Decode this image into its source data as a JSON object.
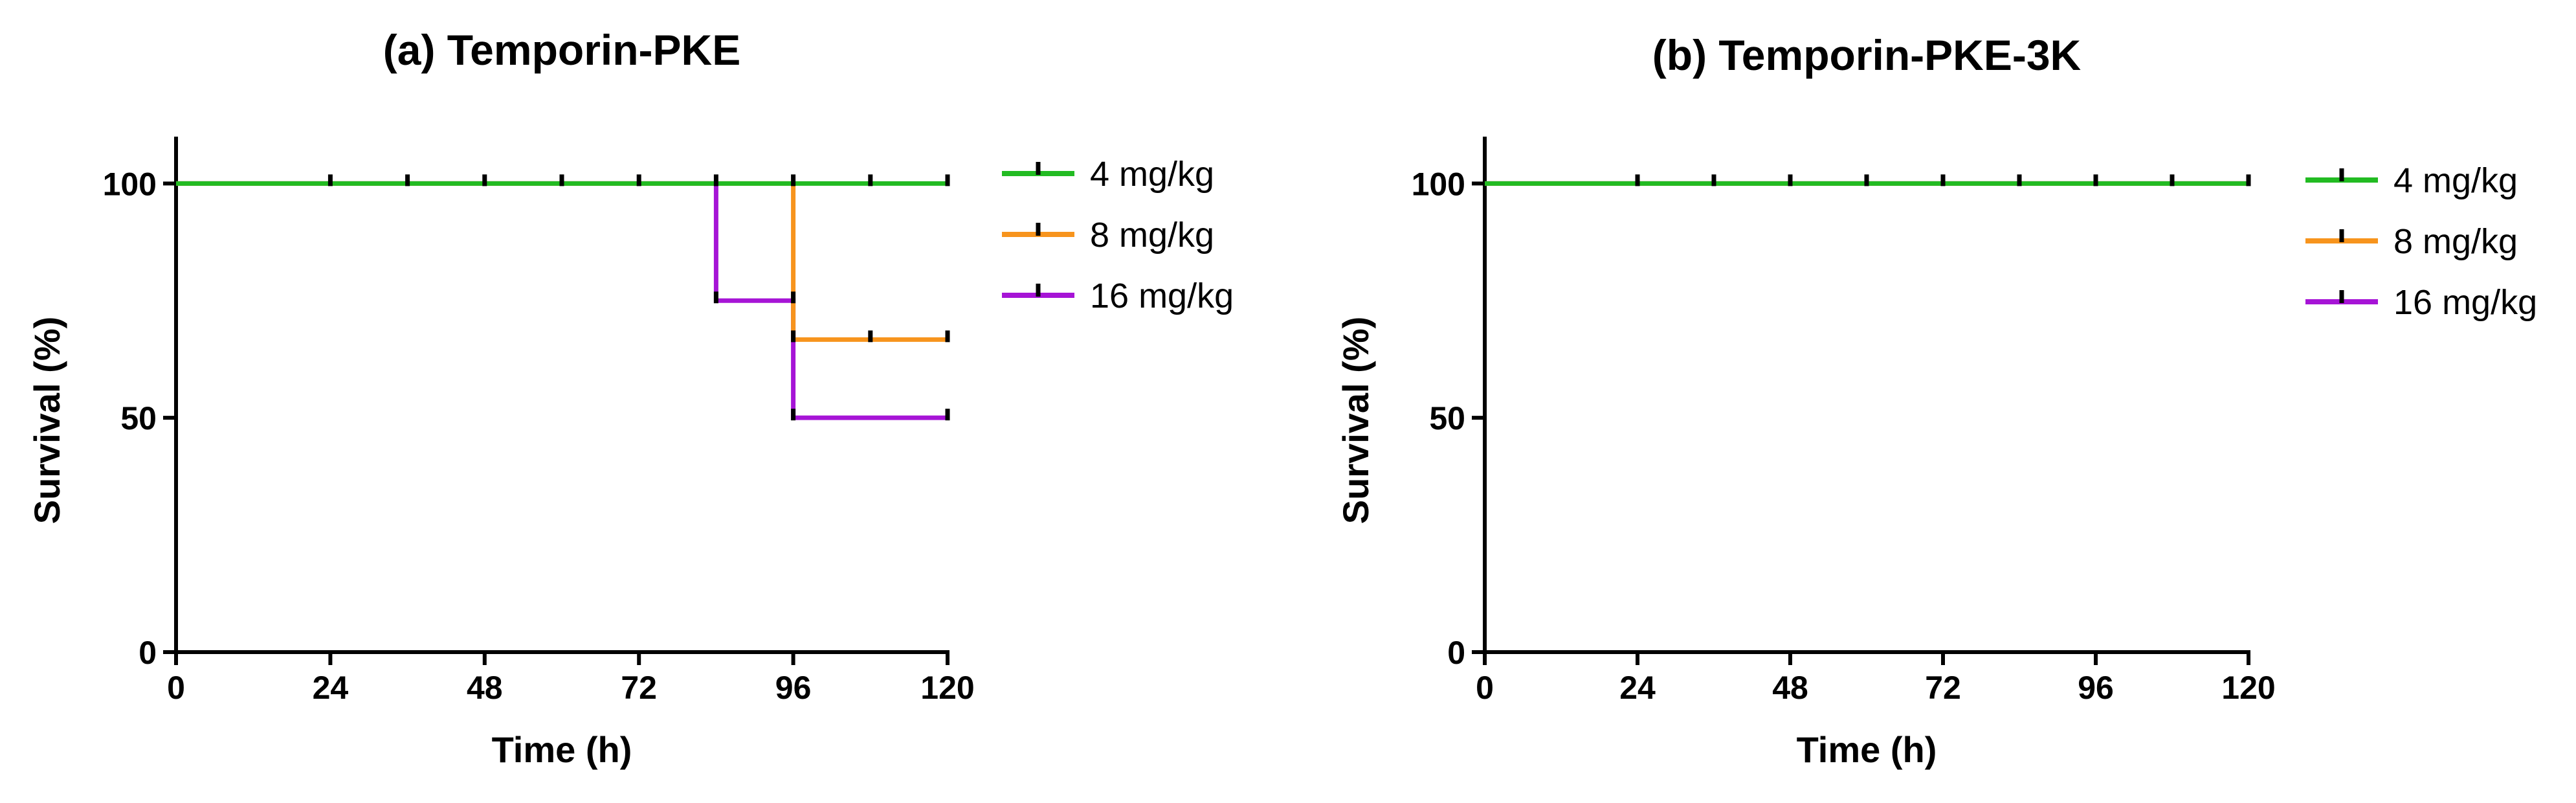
{
  "chart_data": [
    {
      "type": "line",
      "subtype": "kaplan-meier step",
      "title": "(a) Temporin-PKE",
      "xlabel": "Time (h)",
      "ylabel": "Survival (%)",
      "xlim": [
        0,
        120
      ],
      "ylim": [
        0,
        110
      ],
      "xticks": [
        0,
        24,
        48,
        72,
        96,
        120
      ],
      "yticks": [
        0,
        50,
        100
      ],
      "xtick_labels": [
        "0",
        "24",
        "48",
        "72",
        "96",
        "120"
      ],
      "ytick_labels": [
        "0",
        "50",
        "100"
      ],
      "legend_position": "right",
      "series": [
        {
          "name": "4 mg/kg",
          "color": "#22bb22",
          "steps": [
            [
              0,
              100
            ],
            [
              120,
              100
            ]
          ],
          "censors": [
            [
              24,
              100
            ],
            [
              36,
              100
            ],
            [
              48,
              100
            ],
            [
              60,
              100
            ],
            [
              72,
              100
            ],
            [
              84,
              100
            ],
            [
              96,
              100
            ],
            [
              108,
              100
            ],
            [
              120,
              100
            ]
          ]
        },
        {
          "name": "8 mg/kg",
          "color": "#f7941d",
          "steps": [
            [
              0,
              100
            ],
            [
              96,
              100
            ],
            [
              96,
              66.7
            ],
            [
              120,
              66.7
            ]
          ],
          "censors": [
            [
              96,
              66.7
            ],
            [
              108,
              66.7
            ],
            [
              120,
              66.7
            ]
          ]
        },
        {
          "name": "16 mg/kg",
          "color": "#a614d6",
          "steps": [
            [
              0,
              100
            ],
            [
              84,
              100
            ],
            [
              84,
              75
            ],
            [
              96,
              75
            ],
            [
              96,
              50
            ],
            [
              120,
              50
            ]
          ],
          "censors": [
            [
              84,
              75
            ],
            [
              96,
              75
            ],
            [
              96,
              50
            ],
            [
              120,
              50
            ]
          ]
        }
      ]
    },
    {
      "type": "line",
      "subtype": "kaplan-meier step",
      "title": "(b) Temporin-PKE-3K",
      "xlabel": "Time (h)",
      "ylabel": "Survival (%)",
      "xlim": [
        0,
        120
      ],
      "ylim": [
        0,
        110
      ],
      "xticks": [
        0,
        24,
        48,
        72,
        96,
        120
      ],
      "yticks": [
        0,
        50,
        100
      ],
      "xtick_labels": [
        "0",
        "24",
        "48",
        "72",
        "96",
        "120"
      ],
      "ytick_labels": [
        "0",
        "50",
        "100"
      ],
      "legend_position": "right",
      "series": [
        {
          "name": "4 mg/kg",
          "color": "#22bb22",
          "steps": [
            [
              0,
              100
            ],
            [
              120,
              100
            ]
          ],
          "censors": [
            [
              24,
              100
            ],
            [
              36,
              100
            ],
            [
              48,
              100
            ],
            [
              60,
              100
            ],
            [
              72,
              100
            ],
            [
              84,
              100
            ],
            [
              96,
              100
            ],
            [
              108,
              100
            ],
            [
              120,
              100
            ]
          ]
        },
        {
          "name": "8 mg/kg",
          "color": "#f7941d",
          "steps": [
            [
              0,
              100
            ],
            [
              120,
              100
            ]
          ],
          "censors": []
        },
        {
          "name": "16 mg/kg",
          "color": "#a614d6",
          "steps": [
            [
              0,
              100
            ],
            [
              120,
              100
            ]
          ],
          "censors": []
        }
      ]
    }
  ]
}
